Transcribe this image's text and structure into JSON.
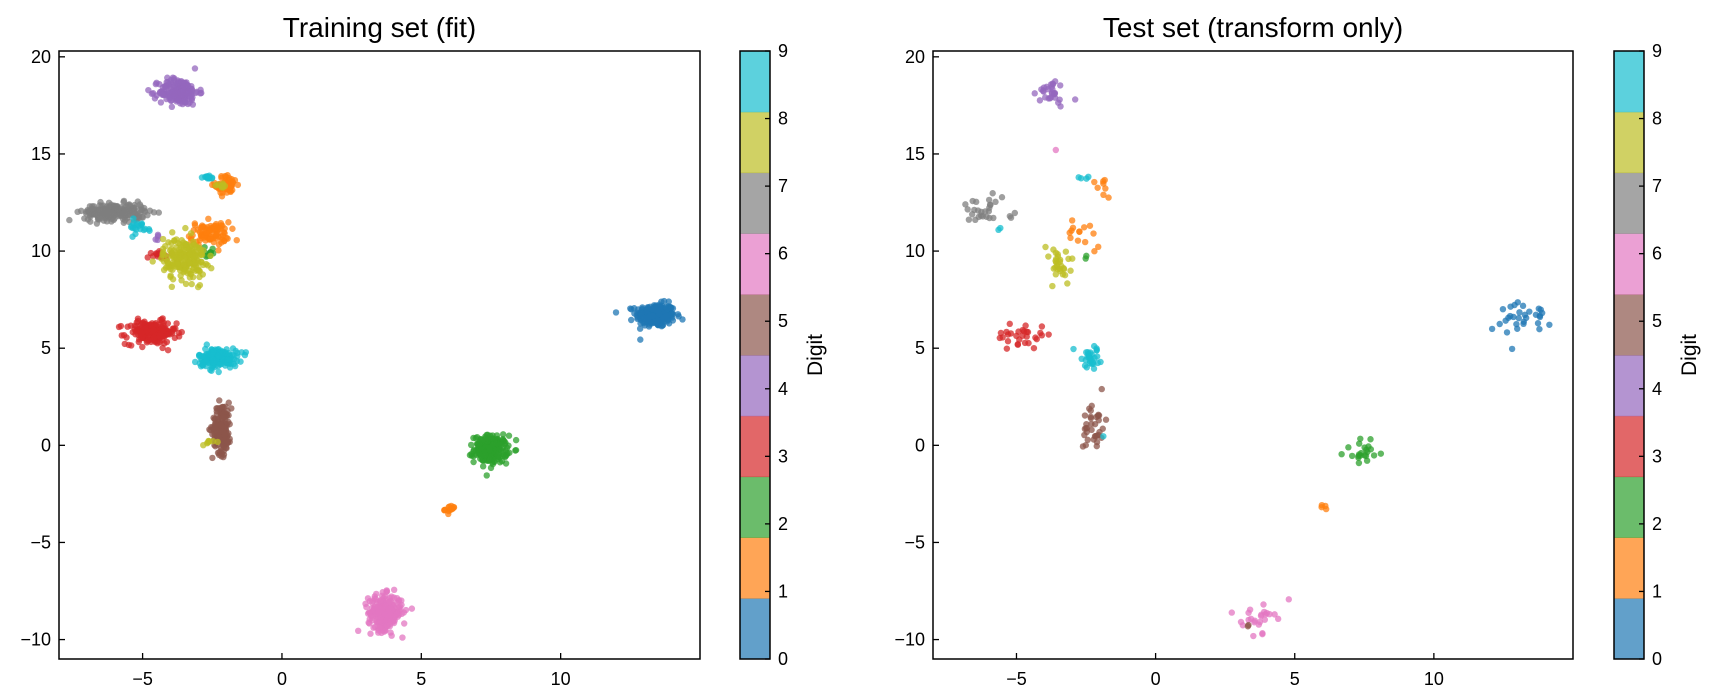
{
  "chart_data": [
    {
      "type": "scatter",
      "title": "Training set (fit)",
      "xlim": [
        -8,
        15
      ],
      "ylim": [
        -11,
        20.3
      ],
      "xticks": [
        -5,
        0,
        5,
        10
      ],
      "xtick_labels": [
        "−5",
        "0",
        "5",
        "10"
      ],
      "yticks": [
        -10,
        -5,
        0,
        5,
        10,
        15,
        20
      ],
      "ytick_labels": [
        "−10",
        "−5",
        "0",
        "5",
        "10",
        "15",
        "20"
      ],
      "grid": false,
      "point_alpha": 0.75,
      "colorbar": {
        "label": "Digit",
        "range": [
          0,
          9
        ],
        "ticks": [
          0,
          1,
          2,
          3,
          4,
          5,
          6,
          7,
          8,
          9
        ],
        "tick_labels": [
          "0",
          "1",
          "2",
          "3",
          "4",
          "5",
          "6",
          "7",
          "8",
          "9"
        ],
        "colors": [
          "#1f77b4",
          "#ff7f0e",
          "#2ca02c",
          "#d62728",
          "#9467bd",
          "#8c564b",
          "#e377c2",
          "#7f7f7f",
          "#bcbd22",
          "#17becf"
        ]
      },
      "clusters": [
        {
          "digit": 0,
          "center": [
            13.4,
            6.7
          ],
          "spread": [
            0.35,
            0.3
          ],
          "count": 260
        },
        {
          "digit": 1,
          "center": [
            -2.0,
            13.4
          ],
          "spread": [
            0.2,
            0.25
          ],
          "count": 70
        },
        {
          "digit": 1,
          "center": [
            -2.6,
            10.9
          ],
          "spread": [
            0.35,
            0.3
          ],
          "count": 90
        },
        {
          "digit": 1,
          "center": [
            6.05,
            -3.3
          ],
          "spread": [
            0.1,
            0.1
          ],
          "count": 15
        },
        {
          "digit": 2,
          "center": [
            7.5,
            -0.2
          ],
          "spread": [
            0.3,
            0.35
          ],
          "count": 220
        },
        {
          "digit": 2,
          "center": [
            -2.55,
            9.9
          ],
          "spread": [
            0.12,
            0.2
          ],
          "count": 10
        },
        {
          "digit": 3,
          "center": [
            -4.7,
            5.8
          ],
          "spread": [
            0.45,
            0.3
          ],
          "count": 200
        },
        {
          "digit": 3,
          "center": [
            -4.4,
            9.8
          ],
          "spread": [
            0.2,
            0.12
          ],
          "count": 15
        },
        {
          "digit": 4,
          "center": [
            -3.7,
            18.2
          ],
          "spread": [
            0.35,
            0.35
          ],
          "count": 180
        },
        {
          "digit": 4,
          "center": [
            -4.5,
            10.7
          ],
          "spread": [
            0.1,
            0.1
          ],
          "count": 4
        },
        {
          "digit": 5,
          "center": [
            -2.15,
            0.9
          ],
          "spread": [
            0.17,
            0.65
          ],
          "count": 160
        },
        {
          "digit": 6,
          "center": [
            3.7,
            -8.6
          ],
          "spread": [
            0.3,
            0.45
          ],
          "count": 250
        },
        {
          "digit": 7,
          "center": [
            -6.0,
            12.0
          ],
          "spread": [
            0.55,
            0.22
          ],
          "count": 230
        },
        {
          "digit": 8,
          "center": [
            -3.5,
            9.6
          ],
          "spread": [
            0.38,
            0.55
          ],
          "count": 200
        },
        {
          "digit": 8,
          "center": [
            -2.2,
            13.4
          ],
          "spread": [
            0.15,
            0.1
          ],
          "count": 8
        },
        {
          "digit": 8,
          "center": [
            -2.7,
            0.15
          ],
          "spread": [
            0.15,
            0.08
          ],
          "count": 8
        },
        {
          "digit": 9,
          "center": [
            -2.3,
            4.5
          ],
          "spread": [
            0.35,
            0.25
          ],
          "count": 170
        },
        {
          "digit": 9,
          "center": [
            -2.7,
            13.8
          ],
          "spread": [
            0.15,
            0.05
          ],
          "count": 15
        },
        {
          "digit": 9,
          "center": [
            -5.2,
            11.2
          ],
          "spread": [
            0.3,
            0.2
          ],
          "count": 20
        }
      ]
    },
    {
      "type": "scatter",
      "title": "Test set (transform only)",
      "xlim": [
        -8,
        15
      ],
      "ylim": [
        -11,
        20.3
      ],
      "xticks": [
        -5,
        0,
        5,
        10
      ],
      "xtick_labels": [
        "−5",
        "0",
        "5",
        "10"
      ],
      "yticks": [
        -10,
        -5,
        0,
        5,
        10,
        15,
        20
      ],
      "ytick_labels": [
        "−10",
        "−5",
        "0",
        "5",
        "10",
        "15",
        "20"
      ],
      "grid": false,
      "point_alpha": 0.75,
      "colorbar": {
        "label": "Digit",
        "range": [
          0,
          9
        ],
        "ticks": [
          0,
          1,
          2,
          3,
          4,
          5,
          6,
          7,
          8,
          9
        ],
        "tick_labels": [
          "0",
          "1",
          "2",
          "3",
          "4",
          "5",
          "6",
          "7",
          "8",
          "9"
        ],
        "colors": [
          "#1f77b4",
          "#ff7f0e",
          "#2ca02c",
          "#d62728",
          "#9467bd",
          "#8c564b",
          "#e377c2",
          "#7f7f7f",
          "#bcbd22",
          "#17becf"
        ]
      },
      "clusters": [
        {
          "digit": 0,
          "center": [
            13.3,
            6.6
          ],
          "spread": [
            0.45,
            0.35
          ],
          "count": 30
        },
        {
          "digit": 0,
          "center": [
            12.8,
            5.0
          ],
          "spread": [
            0.02,
            0.02
          ],
          "count": 1
        },
        {
          "digit": 1,
          "center": [
            -1.9,
            13.4
          ],
          "spread": [
            0.2,
            0.3
          ],
          "count": 8
        },
        {
          "digit": 1,
          "center": [
            -2.6,
            10.9
          ],
          "spread": [
            0.35,
            0.35
          ],
          "count": 14
        },
        {
          "digit": 1,
          "center": [
            6.1,
            -3.2
          ],
          "spread": [
            0.08,
            0.08
          ],
          "count": 4
        },
        {
          "digit": 2,
          "center": [
            7.5,
            -0.3
          ],
          "spread": [
            0.35,
            0.4
          ],
          "count": 22
        },
        {
          "digit": 2,
          "center": [
            -2.5,
            9.7
          ],
          "spread": [
            0.08,
            0.08
          ],
          "count": 2
        },
        {
          "digit": 3,
          "center": [
            -4.8,
            5.7
          ],
          "spread": [
            0.45,
            0.35
          ],
          "count": 30
        },
        {
          "digit": 4,
          "center": [
            -3.8,
            18.1
          ],
          "spread": [
            0.35,
            0.35
          ],
          "count": 30
        },
        {
          "digit": 5,
          "center": [
            -2.2,
            1.0
          ],
          "spread": [
            0.2,
            0.65
          ],
          "count": 35
        },
        {
          "digit": 6,
          "center": [
            3.7,
            -8.8
          ],
          "spread": [
            0.3,
            0.4
          ],
          "count": 25
        },
        {
          "digit": 6,
          "center": [
            -3.6,
            15.2
          ],
          "spread": [
            0.02,
            0.02
          ],
          "count": 1
        },
        {
          "digit": 5,
          "center": [
            3.3,
            -9.25
          ],
          "spread": [
            0.04,
            0.04
          ],
          "count": 2
        },
        {
          "digit": 7,
          "center": [
            -6.2,
            12.0
          ],
          "spread": [
            0.5,
            0.35
          ],
          "count": 28
        },
        {
          "digit": 8,
          "center": [
            -3.5,
            9.3
          ],
          "spread": [
            0.3,
            0.6
          ],
          "count": 30
        },
        {
          "digit": 9,
          "center": [
            -2.3,
            4.4
          ],
          "spread": [
            0.3,
            0.35
          ],
          "count": 30
        },
        {
          "digit": 9,
          "center": [
            -2.7,
            13.8
          ],
          "spread": [
            0.12,
            0.04
          ],
          "count": 4
        },
        {
          "digit": 9,
          "center": [
            -5.5,
            11.2
          ],
          "spread": [
            0.12,
            0.1
          ],
          "count": 2
        },
        {
          "digit": 9,
          "center": [
            -1.9,
            0.5
          ],
          "spread": [
            0.02,
            0.02
          ],
          "count": 1
        }
      ]
    }
  ]
}
